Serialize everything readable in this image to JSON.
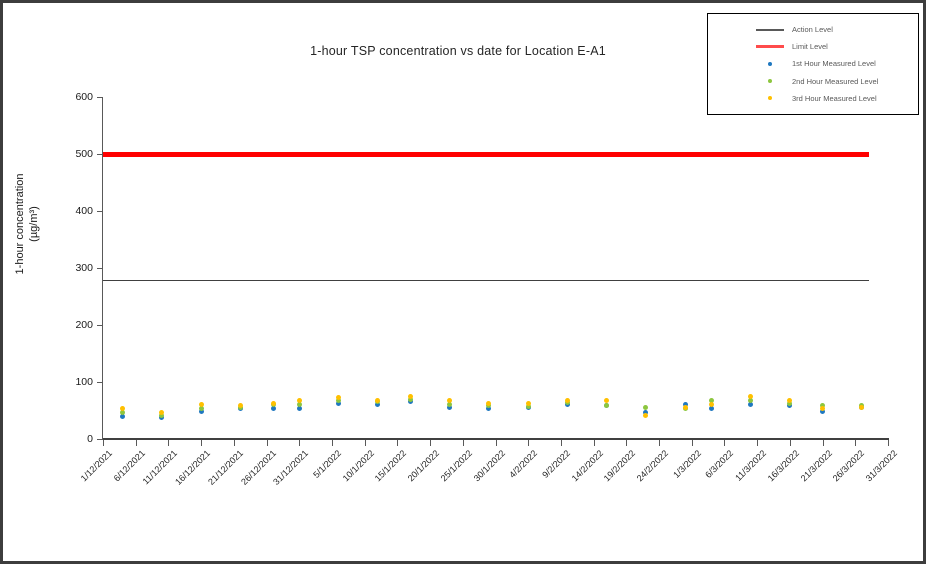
{
  "frame": {
    "border_color": "#3d3d3d",
    "background": "#ffffff"
  },
  "chart_data": {
    "type": "scatter",
    "title": "1-hour TSP concentration vs date for Location E-A1",
    "ylabel": "1-hour concentration (µg/m³)",
    "ylabel_lines": [
      "1-hour concentration",
      "(µg/m³)"
    ],
    "xlabel": "",
    "ylim": [
      0,
      600
    ],
    "y_ticks": [
      0,
      100,
      200,
      300,
      400,
      500,
      600
    ],
    "grid": false,
    "legend_position": "top-right",
    "x_tick_interval_days": 5,
    "x_tick_labels": [
      "1/12/2021",
      "6/12/2021",
      "11/12/2021",
      "16/12/2021",
      "21/12/2021",
      "26/12/2021",
      "31/12/2021",
      "5/1/2022",
      "10/1/2022",
      "15/1/2022",
      "20/1/2022",
      "25/1/2022",
      "30/1/2022",
      "4/2/2022",
      "9/2/2022",
      "14/2/2022",
      "19/2/2022",
      "24/2/2022",
      "1/3/2022",
      "6/3/2022",
      "11/3/2022",
      "16/3/2022",
      "21/3/2022",
      "26/3/2022",
      "31/3/2022"
    ],
    "reference_lines": [
      {
        "name": "Action Level",
        "value": 278,
        "color": "#404040",
        "thickness": 1
      },
      {
        "name": "Limit Level",
        "value": 500,
        "color": "#FF0000",
        "thickness": 5
      }
    ],
    "series": [
      {
        "name": "1st Hour Measured Level",
        "key": "hour1",
        "color": "#1F78C0",
        "marker": "circle"
      },
      {
        "name": "2nd Hour Measured Level",
        "key": "hour2",
        "color": "#8DC63F",
        "marker": "circle"
      },
      {
        "name": "3rd Hour Measured Level",
        "key": "hour3",
        "color": "#FFC000",
        "marker": "circle"
      }
    ],
    "points": [
      {
        "date": "4/12/2021",
        "day": 3,
        "hour1": 39,
        "hour2": 46,
        "hour3": 53
      },
      {
        "date": "10/12/2021",
        "day": 9,
        "hour1": 37,
        "hour2": 42,
        "hour3": 47
      },
      {
        "date": "16/12/2021",
        "day": 15,
        "hour1": 49,
        "hour2": 54,
        "hour3": 61
      },
      {
        "date": "22/12/2021",
        "day": 21,
        "hour1": 53,
        "hour2": 56,
        "hour3": 58
      },
      {
        "date": "27/12/2021",
        "day": 26,
        "hour1": 53,
        "hour2": 60,
        "hour3": 63
      },
      {
        "date": "31/12/2021",
        "day": 30,
        "hour1": 53,
        "hour2": 60,
        "hour3": 67
      },
      {
        "date": "6/1/2022",
        "day": 36,
        "hour1": 63,
        "hour2": 67,
        "hour3": 72
      },
      {
        "date": "12/1/2022",
        "day": 42,
        "hour1": 60,
        "hour2": 65,
        "hour3": 67
      },
      {
        "date": "17/1/2022",
        "day": 47,
        "hour1": 65,
        "hour2": 70,
        "hour3": 75
      },
      {
        "date": "23/1/2022",
        "day": 53,
        "hour1": 56,
        "hour2": 61,
        "hour3": 67
      },
      {
        "date": "29/1/2022",
        "day": 59,
        "hour1": 53,
        "hour2": 58,
        "hour3": 63
      },
      {
        "date": "4/2/2022",
        "day": 65,
        "hour1": 55,
        "hour2": 57,
        "hour3": 63
      },
      {
        "date": "10/2/2022",
        "day": 71,
        "hour1": 60,
        "hour2": 64,
        "hour3": 68
      },
      {
        "date": "16/2/2022",
        "day": 77,
        "hour1": 58,
        "hour2": 58,
        "hour3": 67
      },
      {
        "date": "22/2/2022",
        "day": 83,
        "hour1": 47,
        "hour2": 56,
        "hour3": 42
      },
      {
        "date": "28/2/2022",
        "day": 89,
        "hour1": 60,
        "hour2": 53,
        "hour3": 55
      },
      {
        "date": "4/3/2022",
        "day": 93,
        "hour1": 54,
        "hour2": 67,
        "hour3": 60
      },
      {
        "date": "10/3/2022",
        "day": 99,
        "hour1": 60,
        "hour2": 67,
        "hour3": 75
      },
      {
        "date": "16/3/2022",
        "day": 105,
        "hour1": 58,
        "hour2": 63,
        "hour3": 68
      },
      {
        "date": "21/3/2022",
        "day": 110,
        "hour1": 49,
        "hour2": 58,
        "hour3": 53
      },
      {
        "date": "27/3/2022",
        "day": 116,
        "hour1": 55,
        "hour2": 58,
        "hour3": 56
      }
    ]
  },
  "legend": {
    "items": [
      {
        "label": "Action Level",
        "marker": "line",
        "color": "#595959",
        "thickness": 2
      },
      {
        "label": "Limit Level",
        "marker": "line",
        "color": "#FF4B4B",
        "thickness": 3
      },
      {
        "label": "1st Hour Measured Level",
        "marker": "dot",
        "color": "#1F78C0"
      },
      {
        "label": "2nd Hour Measured Level",
        "marker": "dot",
        "color": "#8DC63F"
      },
      {
        "label": "3rd Hour Measured Level",
        "marker": "dot",
        "color": "#FFC000"
      }
    ]
  }
}
